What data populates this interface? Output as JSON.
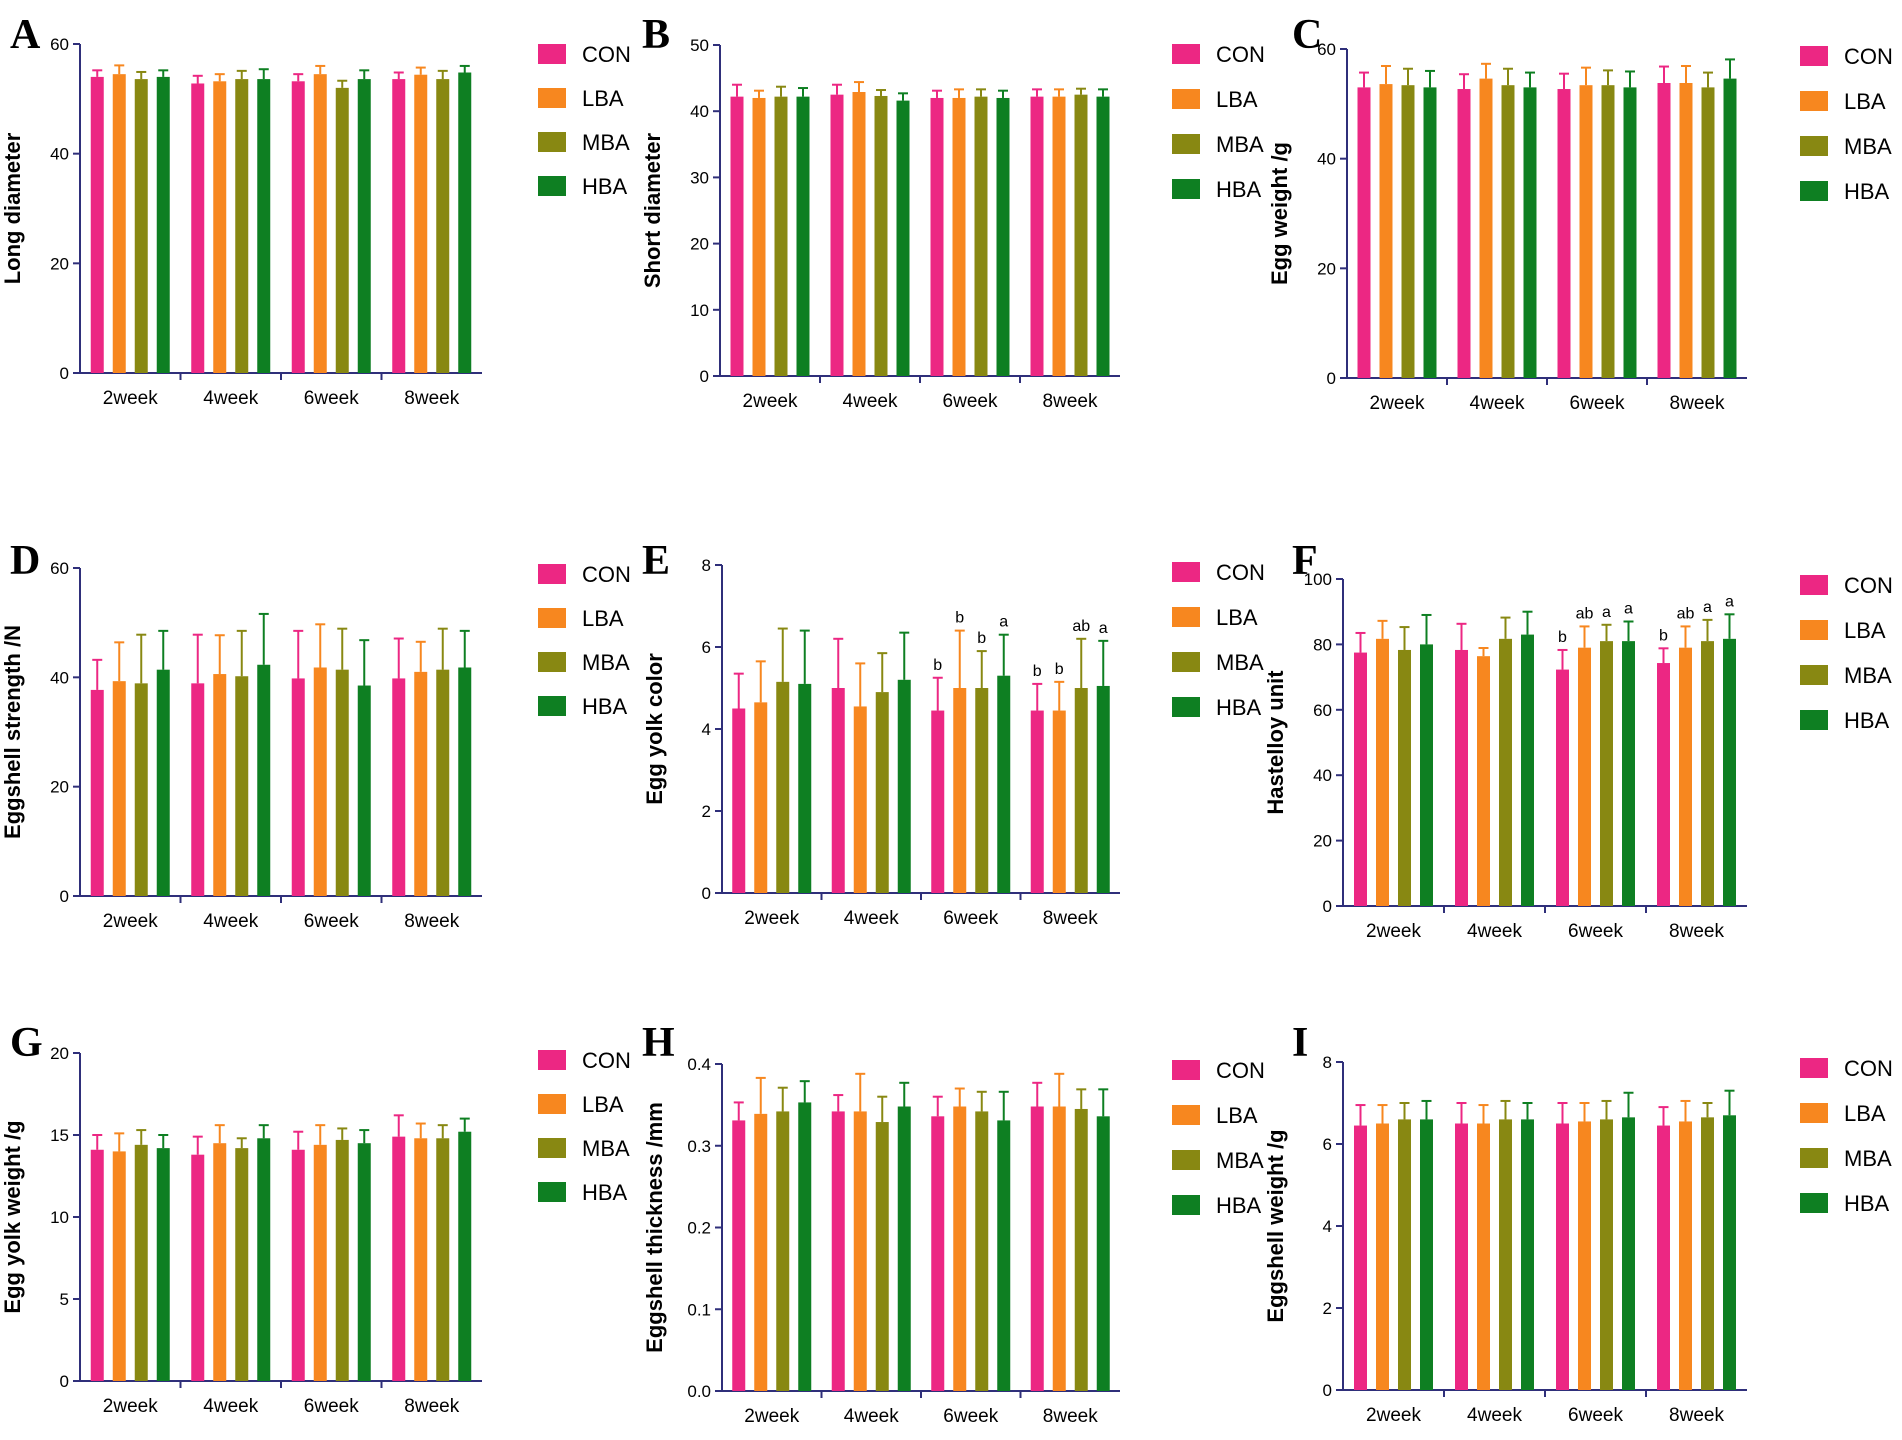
{
  "colors": {
    "CON": "#ec2783",
    "LBA": "#f7871f",
    "MBA": "#888812",
    "HBA": "#0e7f22",
    "axis": "#2f2f7a"
  },
  "legend": [
    "CON",
    "LBA",
    "MBA",
    "HBA"
  ],
  "chart_data": [
    {
      "type": "bar",
      "panel": "A",
      "ylabel": "Long diameter",
      "ylim": [
        0,
        60
      ],
      "yticks": [
        0,
        20,
        40,
        60
      ],
      "categories": [
        "2week",
        "4week",
        "6week",
        "8week"
      ],
      "series": [
        {
          "name": "CON",
          "values": [
            54.0,
            52.8,
            53.2,
            53.6
          ],
          "err": [
            1.2,
            1.4,
            1.3,
            1.2
          ]
        },
        {
          "name": "LBA",
          "values": [
            54.5,
            53.2,
            54.5,
            54.4
          ],
          "err": [
            1.6,
            1.3,
            1.5,
            1.3
          ]
        },
        {
          "name": "MBA",
          "values": [
            53.6,
            53.6,
            52.0,
            53.6
          ],
          "err": [
            1.3,
            1.5,
            1.3,
            1.5
          ]
        },
        {
          "name": "HBA",
          "values": [
            54.0,
            53.6,
            53.6,
            54.8
          ],
          "err": [
            1.2,
            1.8,
            1.6,
            1.2
          ]
        }
      ]
    },
    {
      "type": "bar",
      "panel": "B",
      "ylabel": "Short diameter",
      "ylim": [
        0,
        50
      ],
      "yticks": [
        0,
        10,
        20,
        30,
        40,
        50
      ],
      "categories": [
        "2week",
        "4week",
        "6week",
        "8week"
      ],
      "series": [
        {
          "name": "CON",
          "values": [
            42.2,
            42.5,
            42.0,
            42.2
          ],
          "err": [
            1.8,
            1.5,
            1.1,
            1.1
          ]
        },
        {
          "name": "LBA",
          "values": [
            42.0,
            42.9,
            42.0,
            42.2
          ],
          "err": [
            1.1,
            1.5,
            1.3,
            1.1
          ]
        },
        {
          "name": "MBA",
          "values": [
            42.2,
            42.3,
            42.2,
            42.5
          ],
          "err": [
            1.5,
            0.9,
            1.1,
            0.9
          ]
        },
        {
          "name": "HBA",
          "values": [
            42.2,
            41.6,
            42.0,
            42.2
          ],
          "err": [
            1.3,
            1.1,
            1.1,
            1.1
          ]
        }
      ]
    },
    {
      "type": "bar",
      "panel": "C",
      "ylabel": "Egg weight /g",
      "ylim": [
        0,
        60
      ],
      "yticks": [
        0,
        20,
        40,
        60
      ],
      "categories": [
        "2week",
        "4week",
        "6week",
        "8week"
      ],
      "series": [
        {
          "name": "CON",
          "values": [
            53.0,
            52.7,
            52.7,
            53.8
          ],
          "err": [
            2.7,
            2.7,
            2.8,
            3.0
          ]
        },
        {
          "name": "LBA",
          "values": [
            53.6,
            54.6,
            53.4,
            53.8
          ],
          "err": [
            3.3,
            2.7,
            3.2,
            3.1
          ]
        },
        {
          "name": "MBA",
          "values": [
            53.4,
            53.4,
            53.4,
            53.0
          ],
          "err": [
            3.0,
            3.0,
            2.7,
            2.7
          ]
        },
        {
          "name": "HBA",
          "values": [
            53.0,
            53.0,
            53.0,
            54.6
          ],
          "err": [
            3.0,
            2.7,
            2.9,
            3.5
          ]
        }
      ]
    },
    {
      "type": "bar",
      "panel": "D",
      "ylabel": "Eggshell strength /N",
      "ylim": [
        0,
        60
      ],
      "yticks": [
        0,
        20,
        40,
        60
      ],
      "categories": [
        "2week",
        "4week",
        "6week",
        "8week"
      ],
      "series": [
        {
          "name": "CON",
          "values": [
            37.7,
            38.9,
            39.8,
            39.8
          ],
          "err": [
            5.5,
            8.9,
            8.7,
            7.3
          ]
        },
        {
          "name": "LBA",
          "values": [
            39.3,
            40.6,
            41.8,
            41.0
          ],
          "err": [
            7.1,
            7.1,
            7.9,
            5.5
          ]
        },
        {
          "name": "MBA",
          "values": [
            38.9,
            40.2,
            41.4,
            41.4
          ],
          "err": [
            8.9,
            8.3,
            7.5,
            7.5
          ]
        },
        {
          "name": "HBA",
          "values": [
            41.4,
            42.3,
            38.5,
            41.8
          ],
          "err": [
            7.1,
            9.3,
            8.3,
            6.7
          ]
        }
      ]
    },
    {
      "type": "bar",
      "panel": "E",
      "ylabel": "Egg yolk color",
      "ylim": [
        0,
        8
      ],
      "yticks": [
        0,
        2,
        4,
        6,
        8
      ],
      "categories": [
        "2week",
        "4week",
        "6week",
        "8week"
      ],
      "series": [
        {
          "name": "CON",
          "values": [
            4.5,
            5.0,
            4.45,
            4.45
          ],
          "err": [
            0.85,
            1.2,
            0.8,
            0.65
          ],
          "labels": [
            "",
            "",
            "b",
            "b"
          ]
        },
        {
          "name": "LBA",
          "values": [
            4.65,
            4.55,
            5.0,
            4.45
          ],
          "err": [
            1.0,
            1.05,
            1.4,
            0.7
          ],
          "labels": [
            "",
            "",
            "b",
            "b"
          ]
        },
        {
          "name": "MBA",
          "values": [
            5.15,
            4.9,
            5.0,
            5.0
          ],
          "err": [
            1.3,
            0.95,
            0.9,
            1.2
          ],
          "labels": [
            "",
            "",
            "b",
            "ab"
          ]
        },
        {
          "name": "HBA",
          "values": [
            5.1,
            5.2,
            5.3,
            5.05
          ],
          "err": [
            1.3,
            1.15,
            1.0,
            1.1
          ],
          "labels": [
            "",
            "",
            "a",
            "a"
          ]
        }
      ]
    },
    {
      "type": "bar",
      "panel": "F",
      "ylabel": "Hastelloy unit",
      "ylim": [
        0,
        100
      ],
      "yticks": [
        0,
        20,
        40,
        60,
        80,
        100
      ],
      "categories": [
        "2week",
        "4week",
        "6week",
        "8week"
      ],
      "series": [
        {
          "name": "CON",
          "values": [
            77.5,
            78.3,
            72.3,
            74.3
          ],
          "err": [
            6.0,
            8.0,
            6.0,
            4.5
          ],
          "labels": [
            "",
            "",
            "b",
            "b"
          ]
        },
        {
          "name": "LBA",
          "values": [
            81.7,
            76.4,
            79.0,
            79.0
          ],
          "err": [
            5.5,
            2.5,
            6.5,
            6.5
          ],
          "labels": [
            "",
            "",
            "ab",
            "ab"
          ]
        },
        {
          "name": "MBA",
          "values": [
            78.3,
            81.7,
            81.0,
            81.0
          ],
          "err": [
            7.0,
            6.5,
            5.0,
            6.5
          ],
          "labels": [
            "",
            "",
            "a",
            "a"
          ]
        },
        {
          "name": "HBA",
          "values": [
            80.0,
            83.0,
            81.0,
            81.7
          ],
          "err": [
            9.0,
            7.0,
            6.0,
            7.5
          ],
          "labels": [
            "",
            "",
            "a",
            "a"
          ]
        }
      ]
    },
    {
      "type": "bar",
      "panel": "G",
      "ylabel": "Egg yolk weight /g",
      "ylim": [
        0,
        20
      ],
      "yticks": [
        0,
        5,
        10,
        15,
        20
      ],
      "categories": [
        "2week",
        "4week",
        "6week",
        "8week"
      ],
      "series": [
        {
          "name": "CON",
          "values": [
            14.1,
            13.8,
            14.1,
            14.9
          ],
          "err": [
            0.9,
            1.1,
            1.1,
            1.3
          ]
        },
        {
          "name": "LBA",
          "values": [
            14.0,
            14.5,
            14.4,
            14.8
          ],
          "err": [
            1.1,
            1.1,
            1.2,
            0.9
          ]
        },
        {
          "name": "MBA",
          "values": [
            14.4,
            14.2,
            14.7,
            14.8
          ],
          "err": [
            0.9,
            0.6,
            0.7,
            0.8
          ]
        },
        {
          "name": "HBA",
          "values": [
            14.2,
            14.8,
            14.5,
            15.2
          ],
          "err": [
            0.8,
            0.8,
            0.8,
            0.8
          ]
        }
      ]
    },
    {
      "type": "bar",
      "panel": "H",
      "ylabel": "Eggshell thickness /mm",
      "ylim": [
        0,
        0.4
      ],
      "yticks": [
        0.0,
        0.1,
        0.2,
        0.3,
        0.4
      ],
      "categories": [
        "2week",
        "4week",
        "6week",
        "8week"
      ],
      "series": [
        {
          "name": "CON",
          "values": [
            0.331,
            0.342,
            0.336,
            0.348
          ],
          "err": [
            0.022,
            0.02,
            0.024,
            0.029
          ]
        },
        {
          "name": "LBA",
          "values": [
            0.339,
            0.342,
            0.348,
            0.348
          ],
          "err": [
            0.044,
            0.046,
            0.022,
            0.04
          ]
        },
        {
          "name": "MBA",
          "values": [
            0.342,
            0.329,
            0.342,
            0.345
          ],
          "err": [
            0.029,
            0.031,
            0.024,
            0.024
          ]
        },
        {
          "name": "HBA",
          "values": [
            0.353,
            0.348,
            0.331,
            0.336
          ],
          "err": [
            0.026,
            0.029,
            0.035,
            0.033
          ]
        }
      ]
    },
    {
      "type": "bar",
      "panel": "I",
      "ylabel": "Eggshell weight /g",
      "ylim": [
        0,
        8
      ],
      "yticks": [
        0,
        2,
        4,
        6,
        8
      ],
      "categories": [
        "2week",
        "4week",
        "6week",
        "8week"
      ],
      "series": [
        {
          "name": "CON",
          "values": [
            6.45,
            6.5,
            6.5,
            6.45
          ],
          "err": [
            0.5,
            0.5,
            0.5,
            0.45
          ]
        },
        {
          "name": "LBA",
          "values": [
            6.5,
            6.5,
            6.55,
            6.55
          ],
          "err": [
            0.45,
            0.45,
            0.45,
            0.5
          ]
        },
        {
          "name": "MBA",
          "values": [
            6.6,
            6.6,
            6.6,
            6.65
          ],
          "err": [
            0.4,
            0.45,
            0.45,
            0.35
          ]
        },
        {
          "name": "HBA",
          "values": [
            6.6,
            6.6,
            6.65,
            6.7
          ],
          "err": [
            0.45,
            0.4,
            0.6,
            0.6
          ]
        }
      ]
    }
  ]
}
